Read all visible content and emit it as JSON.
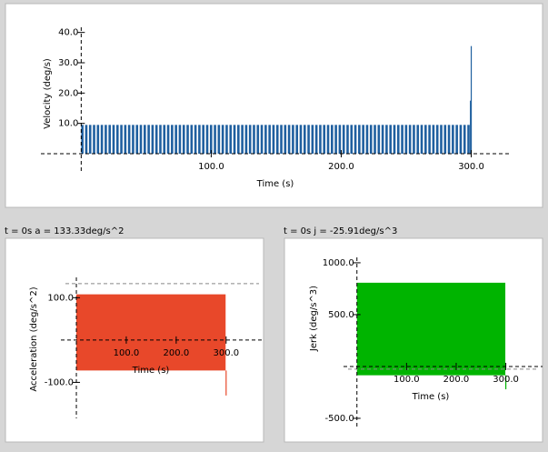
{
  "chart_data": [
    {
      "type": "bar",
      "xlabel": "Time (s)",
      "ylabel": "Velocity (deg/s)",
      "color": "#1f5f9f",
      "x": [
        0,
        3,
        6,
        9,
        12,
        15,
        18,
        21,
        24,
        27,
        30,
        33,
        36,
        39,
        42,
        45,
        48,
        51,
        54,
        57,
        60,
        63,
        66,
        69,
        72,
        75,
        78,
        81,
        84,
        87,
        90,
        93,
        96,
        99,
        102,
        105,
        108,
        111,
        114,
        117,
        120,
        123,
        126,
        129,
        132,
        135,
        138,
        141,
        144,
        147,
        150,
        153,
        156,
        159,
        162,
        165,
        168,
        171,
        174,
        177,
        180,
        183,
        186,
        189,
        192,
        195,
        198,
        201,
        204,
        207,
        210,
        213,
        216,
        219,
        222,
        225,
        228,
        231,
        234,
        237,
        240,
        243,
        246,
        249,
        252,
        255,
        258,
        261,
        264,
        267,
        270,
        273,
        276,
        279,
        282,
        285,
        288,
        291,
        294,
        297,
        299,
        299.6
      ],
      "values": [
        9.5,
        9.5,
        9.5,
        9.5,
        9.5,
        9.5,
        9.5,
        9.5,
        9.5,
        9.5,
        9.5,
        9.5,
        9.5,
        9.5,
        9.5,
        9.5,
        9.5,
        9.5,
        9.5,
        9.5,
        9.5,
        9.5,
        9.5,
        9.5,
        9.5,
        9.5,
        9.5,
        9.5,
        9.5,
        9.5,
        9.5,
        9.5,
        9.5,
        9.5,
        9.5,
        9.5,
        9.5,
        9.5,
        9.5,
        9.5,
        9.5,
        9.5,
        9.5,
        9.5,
        9.5,
        9.5,
        9.5,
        9.5,
        9.5,
        9.5,
        9.5,
        9.5,
        9.5,
        9.5,
        9.5,
        9.5,
        9.5,
        9.5,
        9.5,
        9.5,
        9.5,
        9.5,
        9.5,
        9.5,
        9.5,
        9.5,
        9.5,
        9.5,
        9.5,
        9.5,
        9.5,
        9.5,
        9.5,
        9.5,
        9.5,
        9.5,
        9.5,
        9.5,
        9.5,
        9.5,
        9.5,
        9.5,
        9.5,
        9.5,
        9.5,
        9.5,
        9.5,
        9.5,
        9.5,
        9.5,
        9.5,
        9.5,
        9.5,
        9.5,
        9.5,
        9.5,
        9.5,
        9.5,
        9.5,
        9.5,
        17.5,
        35.5
      ],
      "xlim": [
        -31,
        329
      ],
      "ylim": [
        -6.3,
        41.7
      ],
      "xticks": [
        {
          "value": 100,
          "label": "100.0"
        },
        {
          "value": 200,
          "label": "200.0"
        },
        {
          "value": 300,
          "label": "300.0"
        }
      ],
      "yticks": [
        {
          "value": 10,
          "label": "10.0"
        },
        {
          "value": 20,
          "label": "20.0"
        },
        {
          "value": 30,
          "label": "30.0"
        },
        {
          "value": 40,
          "label": "40.0"
        }
      ]
    },
    {
      "type": "range",
      "title": "t = 0s  a = 133.33deg/s^2",
      "xlabel": "Time (s)",
      "ylabel": "Acceleration (deg/s^2)",
      "color": "#e8482a",
      "x": [
        0,
        299
      ],
      "high": [
        108,
        108
      ],
      "low": [
        -72,
        -72
      ],
      "spike": {
        "x": 300,
        "low": -131
      },
      "reference": 133.33,
      "xlim": [
        -31,
        375
      ],
      "ylim": [
        -185,
        148
      ],
      "xticks": [
        {
          "value": 100,
          "label": "100.0"
        },
        {
          "value": 200,
          "label": "200.0"
        },
        {
          "value": 300,
          "label": "300.0"
        }
      ],
      "yticks": [
        {
          "value": -100,
          "label": "-100.0"
        },
        {
          "value": 100,
          "label": "100.0"
        }
      ]
    },
    {
      "type": "range",
      "title": "t = 0s  j = -25.91deg/s^3",
      "xlabel": "Time (s)",
      "ylabel": "Jerk (deg/s^3)",
      "color": "#00b400",
      "x": [
        0,
        299
      ],
      "high": [
        807,
        807
      ],
      "low": [
        -85,
        -85
      ],
      "spike": {
        "x": 300,
        "low": -220
      },
      "reference": -25.91,
      "xlim": [
        -27,
        374
      ],
      "ylim": [
        -588,
        1052
      ],
      "xticks": [
        {
          "value": 100,
          "label": "100.0"
        },
        {
          "value": 200,
          "label": "200.0"
        },
        {
          "value": 300,
          "label": "300.0"
        }
      ],
      "yticks": [
        {
          "value": -500,
          "label": "-500.0"
        },
        {
          "value": 500,
          "label": "500.0"
        },
        {
          "value": 1000,
          "label": "1000.0"
        }
      ]
    }
  ]
}
